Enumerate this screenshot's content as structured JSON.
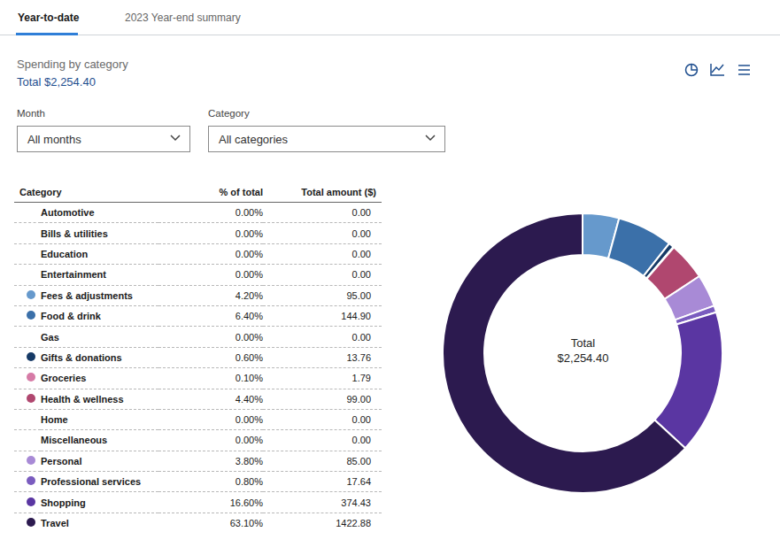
{
  "tabs": [
    "Year-to-date",
    "2023 Year-end summary"
  ],
  "filters": [
    {
      "label": "Month",
      "value": "All months"
    },
    {
      "label": "Category",
      "value": "All categories"
    }
  ],
  "chart_data": {
    "type": "pie",
    "title": "Spending by category",
    "total_label": "Total",
    "total": {
      "value": 2254.4,
      "label": "$2,254.40"
    },
    "columns": [
      "Category",
      "% of total",
      "Total amount ($)"
    ],
    "categories": [
      "Automotive",
      "Bills & utilities",
      "Education",
      "Entertainment",
      "Fees & adjustments",
      "Food & drink",
      "Gas",
      "Gifts & donations",
      "Groceries",
      "Health & wellness",
      "Home",
      "Miscellaneous",
      "Personal",
      "Professional services",
      "Shopping",
      "Travel"
    ],
    "values": [
      0,
      0,
      0,
      0,
      95.0,
      144.9,
      0,
      13.76,
      1.79,
      99.0,
      0,
      0,
      85.0,
      17.64,
      374.43,
      1422.88
    ],
    "value_labels": [
      "0.00",
      "0.00",
      "0.00",
      "0.00",
      "95.00",
      "144.90",
      "0.00",
      "13.76",
      "1.79",
      "99.00",
      "0.00",
      "0.00",
      "85.00",
      "17.64",
      "374.43",
      "1422.88"
    ],
    "percentages": [
      0,
      0,
      0,
      0,
      4.2,
      6.4,
      0,
      0.6,
      0.1,
      4.4,
      0,
      0,
      3.8,
      0.8,
      16.6,
      63.1
    ],
    "percentage_labels": [
      "0.00%",
      "0.00%",
      "0.00%",
      "0.00%",
      "4.20%",
      "6.40%",
      "0.00%",
      "0.60%",
      "0.10%",
      "4.40%",
      "0.00%",
      "0.00%",
      "3.80%",
      "0.80%",
      "16.60%",
      "63.10%"
    ],
    "colors": [
      null,
      null,
      null,
      null,
      "#6699cc",
      "#3b70a9",
      null,
      "#163a66",
      "#d67ba6",
      "#b0476f",
      null,
      null,
      "#a88ad6",
      "#7a5cbf",
      "#5a36a2",
      "#2c1a4f"
    ],
    "legend": "left"
  }
}
